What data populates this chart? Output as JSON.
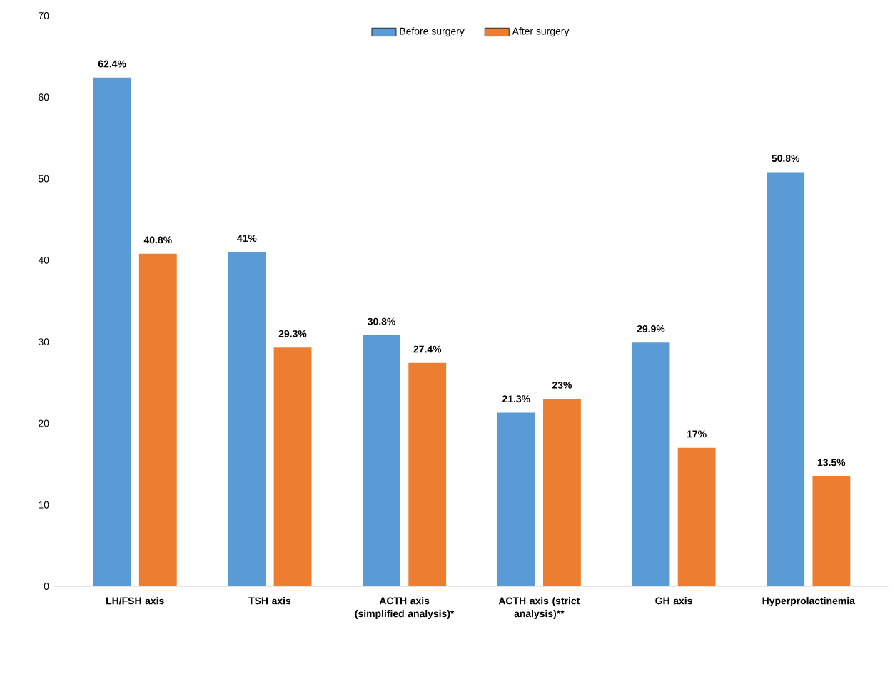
{
  "chart_data": {
    "type": "bar",
    "categories": [
      "LH/FSH axis",
      "TSH axis",
      "ACTH axis (simplified analysis)*",
      "ACTH axis (strict analysis)**",
      "GH axis",
      "Hyperprolactinemia"
    ],
    "series": [
      {
        "name": "Before surgery",
        "color": "#5b9bd5",
        "values": [
          62.4,
          41,
          30.8,
          21.3,
          29.9,
          50.8
        ],
        "value_labels": [
          "62.4%",
          "41%",
          "30.8%",
          "21.3%",
          "29.9%",
          "50.8%"
        ]
      },
      {
        "name": "After surgery",
        "color": "#ed7d31",
        "values": [
          40.8,
          29.3,
          27.4,
          23,
          17,
          13.5
        ],
        "value_labels": [
          "40.8%",
          "29.3%",
          "27.4%",
          "23%",
          "17%",
          "13.5%"
        ]
      }
    ],
    "ylim": [
      0,
      70
    ],
    "yticks": [
      0,
      10,
      20,
      30,
      40,
      50,
      60,
      70
    ],
    "grid": false,
    "legend": "top"
  }
}
